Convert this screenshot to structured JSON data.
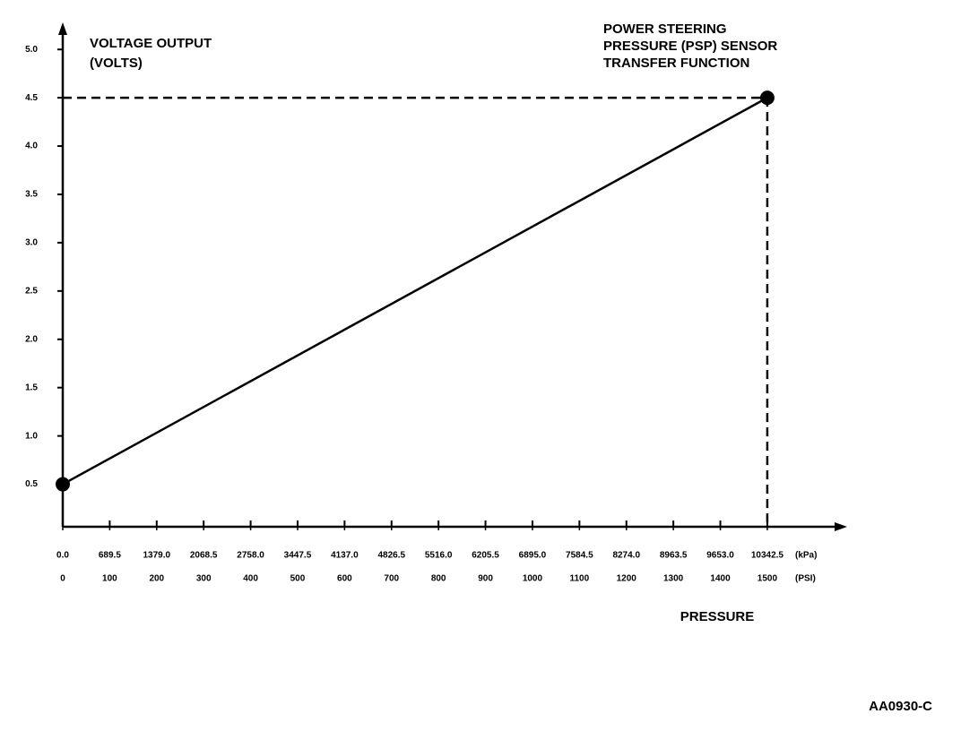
{
  "chart_data": {
    "type": "line",
    "title": [
      "POWER STEERING",
      "PRESSURE (PSP) SENSOR",
      "TRANSFER FUNCTION"
    ],
    "y_label": [
      "VOLTAGE OUTPUT",
      "(VOLTS)"
    ],
    "x_label": "PRESSURE",
    "x_unit": "(PSI)",
    "x2_unit": "(kPa)",
    "figure_id": "AA0930-C",
    "series": [
      {
        "color": "#000000",
        "x": [
          0,
          1500
        ],
        "values": [
          0.5,
          4.5
        ]
      }
    ],
    "xlim": [
      0,
      1670
    ],
    "xticks": [
      0,
      100,
      200,
      300,
      400,
      500,
      600,
      700,
      800,
      900,
      1000,
      1100,
      1200,
      1300,
      1400,
      1500
    ],
    "x2lim": [
      0,
      11514.7
    ],
    "x2ticks": [
      {
        "value": 0,
        "label": "0.0"
      },
      689.5,
      {
        "value": 1379,
        "label": "1379.0"
      },
      2068.5,
      {
        "value": 2758,
        "label": "2758.0"
      },
      3447.5,
      {
        "value": 4137,
        "label": "4137.0"
      },
      4826.5,
      {
        "value": 5516,
        "label": "5516.0"
      },
      6205.5,
      {
        "value": 6895,
        "label": "6895.0"
      },
      7584.5,
      {
        "value": 8274,
        "label": "8274.0"
      },
      8963.5,
      {
        "value": 9653,
        "label": "9653.0"
      },
      10342.5
    ],
    "ylim": [
      0.06,
      5.28
    ],
    "yticks": [
      0.5,
      {
        "value": 1,
        "label": "1.0"
      },
      1.5,
      {
        "value": 2,
        "label": "2.0"
      },
      2.5,
      {
        "value": 3,
        "label": "3.0"
      },
      3.5,
      {
        "value": 4,
        "label": "4.0"
      },
      4.5,
      {
        "value": 5,
        "label": "5.0"
      }
    ],
    "grid": false
  }
}
